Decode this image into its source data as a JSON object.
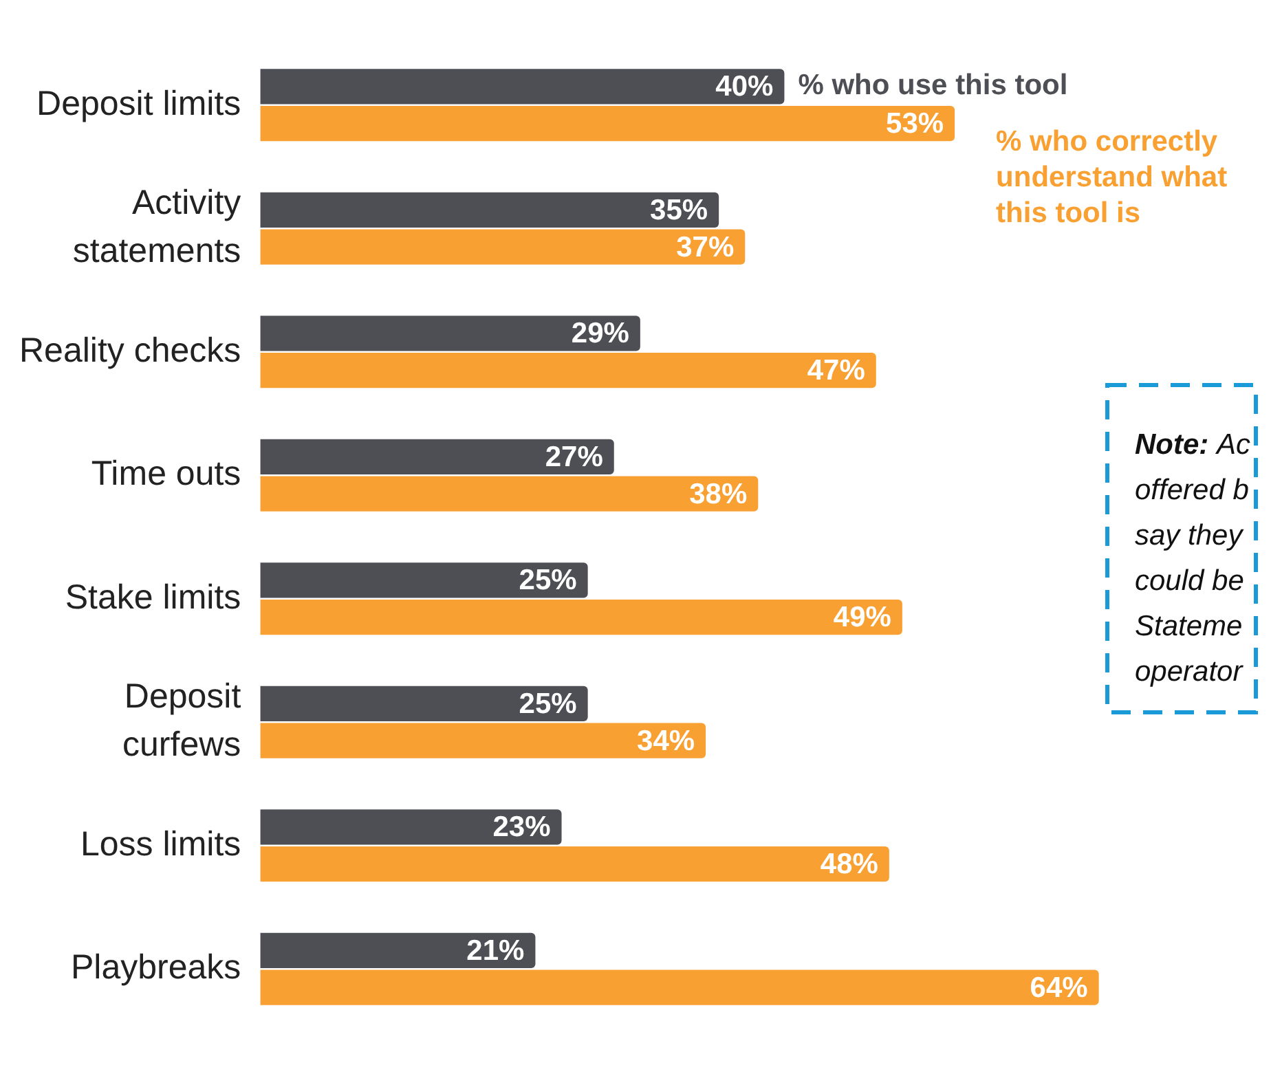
{
  "chart_data": {
    "type": "bar",
    "orientation": "horizontal",
    "categories": [
      "Deposit limits",
      "Activity\nstatements",
      "Reality checks",
      "Time outs",
      "Stake limits",
      "Deposit\ncurfews",
      "Loss limits",
      "Playbreaks"
    ],
    "series": [
      {
        "name": "% who use this tool",
        "color": "#4d4f54",
        "values": [
          40,
          35,
          29,
          27,
          25,
          25,
          23,
          21
        ],
        "value_labels": [
          "40%",
          "35%",
          "29%",
          "27%",
          "25%",
          "25%",
          "23%",
          "21%"
        ]
      },
      {
        "name": "% who correctly understand what this tool is",
        "color": "#f9a033",
        "values": [
          53,
          37,
          47,
          38,
          49,
          34,
          48,
          64
        ],
        "value_labels": [
          "53%",
          "37%",
          "47%",
          "38%",
          "49%",
          "34%",
          "48%",
          "64%"
        ]
      }
    ],
    "tick_labels": "y",
    "legend": false,
    "annotations": [
      "Note: Ac\noffered b\nsay they\ncould be\nStateme\noperator"
    ]
  }
}
